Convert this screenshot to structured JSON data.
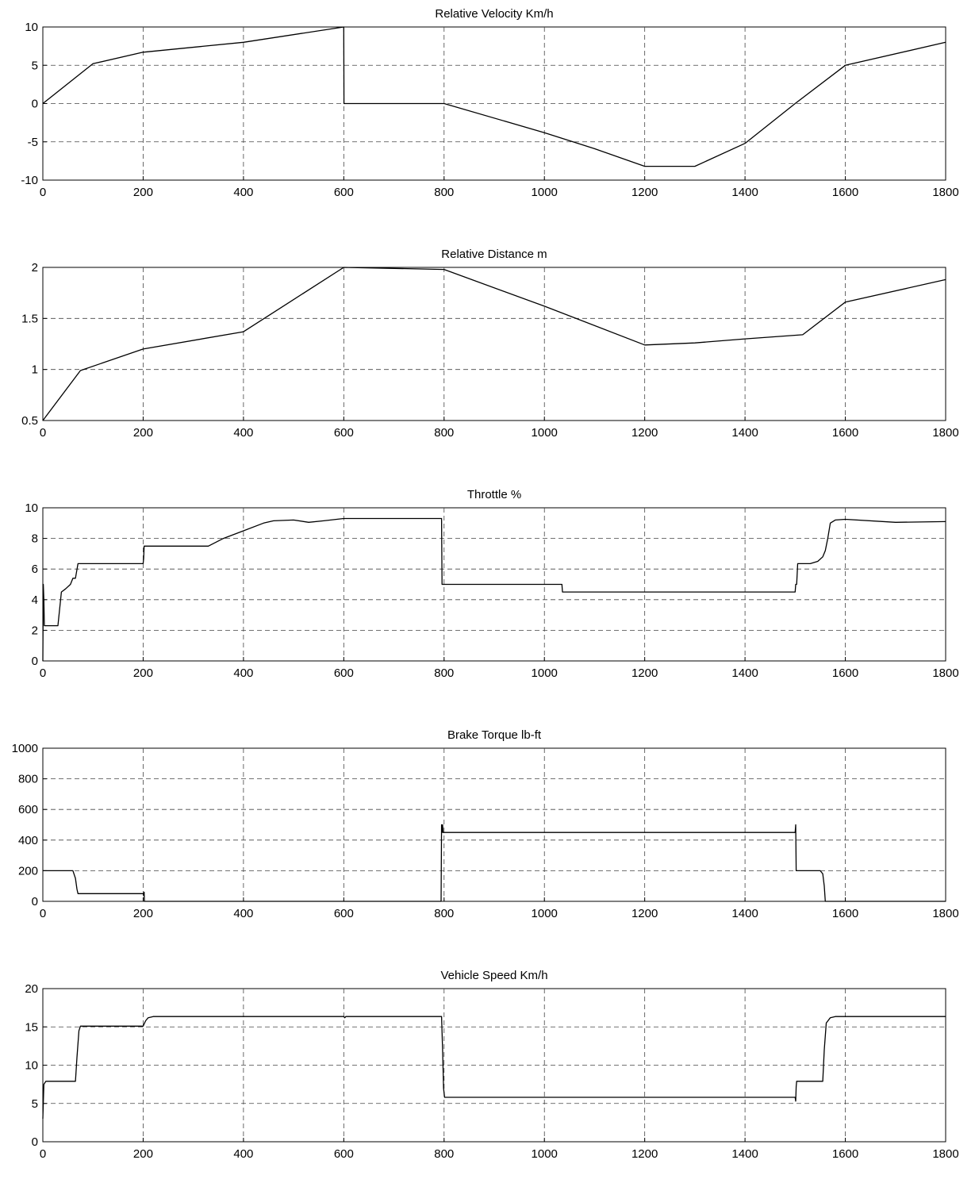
{
  "chart_data": [
    {
      "type": "line",
      "title": "Relative Velocity Km/h",
      "xlim": [
        0,
        1800
      ],
      "ylim": [
        -10,
        10
      ],
      "xticks": [
        0,
        200,
        400,
        600,
        800,
        1000,
        1200,
        1400,
        1600,
        1800
      ],
      "yticks": [
        -10,
        -5,
        0,
        5,
        10
      ],
      "grid": true,
      "x": [
        0,
        100,
        200,
        400,
        600,
        600.5,
        800,
        1000,
        1100,
        1200,
        1300,
        1400,
        1500,
        1600,
        1800
      ],
      "y": [
        0,
        5.2,
        6.7,
        8,
        10,
        0,
        0,
        -3.8,
        -5.9,
        -8.2,
        -8.2,
        -5.2,
        0,
        5,
        8
      ]
    },
    {
      "type": "line",
      "title": "Relative Distance m",
      "xlim": [
        0,
        1800
      ],
      "ylim": [
        0.5,
        2
      ],
      "xticks": [
        0,
        200,
        400,
        600,
        800,
        1000,
        1200,
        1400,
        1600,
        1800
      ],
      "yticks": [
        0.5,
        1,
        1.5,
        2
      ],
      "grid": true,
      "x": [
        0,
        75,
        200,
        400,
        600,
        800,
        1000,
        1200,
        1300,
        1400,
        1515,
        1600,
        1800
      ],
      "y": [
        0.5,
        0.99,
        1.2,
        1.37,
        2.0,
        1.98,
        1.62,
        1.24,
        1.26,
        1.3,
        1.34,
        1.66,
        1.88
      ]
    },
    {
      "type": "line",
      "title": "Throttle %",
      "xlim": [
        0,
        1800
      ],
      "ylim": [
        0,
        10
      ],
      "xticks": [
        0,
        200,
        400,
        600,
        800,
        1000,
        1200,
        1400,
        1600,
        1800
      ],
      "yticks": [
        0,
        2,
        4,
        6,
        8,
        10
      ],
      "grid": true,
      "x": [
        0,
        1,
        2,
        3,
        30,
        37,
        45,
        55,
        60,
        65,
        70,
        200,
        201,
        202,
        330,
        360,
        400,
        440,
        460,
        500,
        530,
        560,
        600,
        795,
        796,
        1035,
        1036,
        1500,
        1501,
        1503,
        1505,
        1530,
        1545,
        1555,
        1560,
        1565,
        1570,
        1580,
        1600,
        1700,
        1800
      ],
      "y": [
        0,
        5,
        4,
        2.3,
        2.3,
        4.5,
        4.7,
        5,
        5.4,
        5.4,
        6.35,
        6.35,
        6.7,
        7.5,
        7.5,
        8.0,
        8.5,
        9.0,
        9.15,
        9.2,
        9.05,
        9.15,
        9.3,
        9.3,
        5.0,
        5.0,
        4.5,
        4.5,
        5.0,
        5.0,
        6.35,
        6.35,
        6.5,
        6.8,
        7.2,
        8.0,
        9.0,
        9.2,
        9.25,
        9.05,
        9.1
      ]
    },
    {
      "type": "line",
      "title": "Brake Torque lb-ft",
      "xlim": [
        0,
        1800
      ],
      "ylim": [
        0,
        1000
      ],
      "xticks": [
        0,
        200,
        400,
        600,
        800,
        1000,
        1200,
        1400,
        1600,
        1800
      ],
      "yticks": [
        0,
        200,
        400,
        600,
        800,
        1000
      ],
      "grid": true,
      "x": [
        0,
        60,
        65,
        68,
        70,
        200,
        201,
        202,
        202.5,
        794,
        795,
        796,
        797,
        798,
        1500,
        1501,
        1502,
        1503,
        1550,
        1555,
        1558,
        1560,
        1561,
        1800
      ],
      "y": [
        200,
        200,
        150,
        80,
        50,
        50,
        40,
        60,
        0,
        0,
        500,
        450,
        500,
        450,
        450,
        500,
        200,
        200,
        200,
        180,
        100,
        0,
        0,
        0
      ]
    },
    {
      "type": "line",
      "title": "Vehicle Speed Km/h",
      "xlim": [
        0,
        1800
      ],
      "ylim": [
        0,
        20
      ],
      "xticks": [
        0,
        200,
        400,
        600,
        800,
        1000,
        1200,
        1400,
        1600,
        1800
      ],
      "yticks": [
        0,
        5,
        10,
        15,
        20
      ],
      "grid": true,
      "x": [
        0,
        2,
        6,
        65,
        68,
        72,
        75,
        200,
        205,
        210,
        220,
        600,
        602,
        604,
        795,
        797,
        799,
        801,
        1500,
        1501,
        1502,
        1503,
        1555,
        1558,
        1562,
        1570,
        1580,
        1800
      ],
      "y": [
        3,
        7.5,
        7.9,
        7.9,
        11,
        14.5,
        15.1,
        15.1,
        15.8,
        16.2,
        16.35,
        16.35,
        16.2,
        16.35,
        16.35,
        12,
        7,
        5.8,
        5.8,
        5.3,
        7.2,
        7.9,
        7.9,
        12,
        15.5,
        16.2,
        16.35,
        16.35
      ]
    }
  ]
}
